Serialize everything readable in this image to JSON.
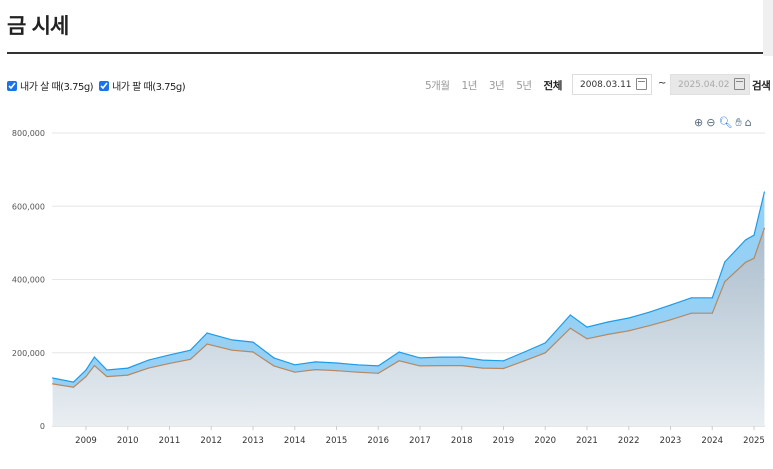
{
  "title": "금 시세",
  "options": {
    "buy_label": "내가 살 때(3.75g)",
    "sell_label": "내가 팔 때(3.75g)"
  },
  "periods": [
    "5개월",
    "1년",
    "3년",
    "5년",
    "전체"
  ],
  "active_period": "전체",
  "start_date": "2008.03.11",
  "end_date": "2025.04.02",
  "tilde": "~",
  "search_label": "검색",
  "colors": {
    "buy": "#1e9be8",
    "sell": "#b8875f",
    "fill": "#b9cad8"
  },
  "chart_data": {
    "type": "area",
    "ylim": [
      0,
      800000
    ],
    "yticks": [
      0,
      200000,
      400000,
      600000,
      800000
    ],
    "ytick_labels": [
      "0",
      "200,000",
      "400,000",
      "600,000",
      "800,000"
    ],
    "xticks": [
      2009,
      2010,
      2011,
      2012,
      2013,
      2014,
      2015,
      2016,
      2017,
      2018,
      2019,
      2020,
      2021,
      2022,
      2023,
      2024,
      2025
    ],
    "x": [
      2008.2,
      2008.7,
      2009.0,
      2009.2,
      2009.5,
      2010.0,
      2010.5,
      2011.0,
      2011.5,
      2011.9,
      2012.5,
      2013.0,
      2013.5,
      2014.0,
      2014.5,
      2015.0,
      2015.5,
      2016.0,
      2016.5,
      2017.0,
      2017.5,
      2018.0,
      2018.5,
      2019.0,
      2019.5,
      2020.0,
      2020.6,
      2021.0,
      2021.5,
      2022.0,
      2022.5,
      2023.0,
      2023.5,
      2024.0,
      2024.3,
      2024.8,
      2025.0,
      2025.25
    ],
    "series": [
      {
        "name": "내가 살 때(3.75g)",
        "values": [
          131000,
          120000,
          153000,
          188000,
          153000,
          158000,
          180000,
          194000,
          207000,
          254000,
          235000,
          229000,
          186000,
          167000,
          175000,
          172000,
          167000,
          164000,
          202000,
          186000,
          188000,
          188000,
          180000,
          178000,
          202000,
          227000,
          303000,
          270000,
          284000,
          295000,
          311000,
          330000,
          350000,
          350000,
          448000,
          508000,
          521000,
          639000
        ]
      },
      {
        "name": "내가 팔 때(3.75g)",
        "values": [
          115000,
          106000,
          135000,
          165000,
          135000,
          139000,
          158000,
          171000,
          182000,
          224000,
          207000,
          202000,
          164000,
          147000,
          154000,
          151000,
          147000,
          144000,
          178000,
          164000,
          165000,
          165000,
          158000,
          157000,
          178000,
          200000,
          267000,
          238000,
          250000,
          260000,
          274000,
          290000,
          308000,
          308000,
          394000,
          447000,
          458000,
          540000
        ]
      }
    ]
  }
}
